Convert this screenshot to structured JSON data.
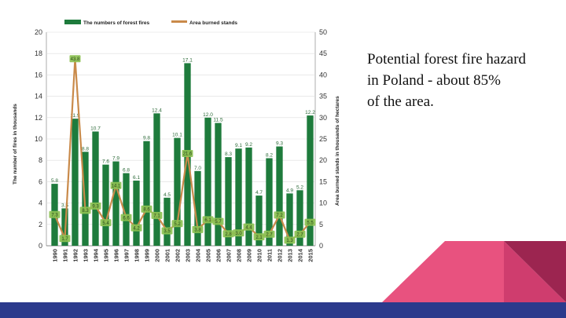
{
  "caption": {
    "lines": [
      "Potential forest fire hazard",
      "in Poland - about 85%",
      "of the area."
    ]
  },
  "colors": {
    "bar": "#1e7b3c",
    "line": "#c98a4a",
    "label_box": "#8cc152",
    "bottom_band": "#2b3a8c",
    "pink": "#e8527f",
    "magenta": "#cf3d6e",
    "maroon": "#9c2550"
  },
  "chart_data": {
    "type": "bar+line",
    "legend": [
      "The numbers of forest fires",
      "Area burned stands"
    ],
    "ylabel_left": "The number of fires in thousands",
    "ylabel_right": "Area burned stands in thousands of hectares",
    "ylim_left": [
      0,
      20
    ],
    "ylim_right": [
      0,
      50
    ],
    "yticks_left": [
      "0",
      "2",
      "4",
      "6",
      "8",
      "10",
      "12",
      "14",
      "16",
      "18",
      "20"
    ],
    "yticks_right": [
      "0",
      "5",
      "10",
      "15",
      "20",
      "25",
      "30",
      "35",
      "40",
      "45",
      "50"
    ],
    "categories": [
      "1990",
      "1991",
      "1992",
      "1993",
      "1994",
      "1995",
      "1996",
      "1997",
      "1998",
      "1999",
      "2000",
      "2001",
      "2002",
      "2003",
      "2004",
      "2005",
      "2006",
      "2007",
      "2008",
      "2009",
      "2010",
      "2011",
      "2012",
      "2013",
      "2014",
      "2015"
    ],
    "series": [
      {
        "name": "The numbers of forest fires",
        "axis": "left",
        "values": [
          5.8,
          3.5,
          11.9,
          8.8,
          10.7,
          7.6,
          7.9,
          6.8,
          6.1,
          9.8,
          12.4,
          4.5,
          10.1,
          17.1,
          7.0,
          12.0,
          11.5,
          8.3,
          9.1,
          9.2,
          4.7,
          8.2,
          9.3,
          4.9,
          5.2,
          12.2
        ],
        "labels": [
          "5.8",
          "3.5",
          "11.9",
          "8.8",
          "10.7",
          "7.6",
          "7.9",
          "6.8",
          "6.1",
          "9.8",
          "12.4",
          "4.5",
          "10.1",
          "17.1",
          "7.0",
          "12.0",
          "11.5",
          "8.3",
          "9.1",
          "9.2",
          "4.7",
          "8.2",
          "9.3",
          "4.9",
          "5.2",
          "12.2"
        ]
      },
      {
        "name": "Area burned stands",
        "axis": "right",
        "values": [
          7.3,
          1.7,
          43.8,
          8.3,
          9.3,
          5.4,
          14.1,
          6.6,
          4.2,
          8.6,
          7.1,
          3.5,
          5.2,
          21.6,
          3.8,
          6.1,
          5.7,
          2.8,
          3.0,
          4.4,
          2.1,
          2.7,
          7.2,
          1.3,
          2.7,
          5.5
        ],
        "labels": [
          "7.3",
          "1.7",
          "43.8",
          "8.3",
          "9.3",
          "5.4",
          "14.1",
          "6.6",
          "4.2",
          "8.6",
          "7.1",
          "3.5",
          "5.2",
          "21.6",
          "3.8",
          "6.1",
          "5.7",
          "2.8",
          "3.0",
          "4.4",
          "2.1",
          "2.7",
          "7.2",
          "1.3",
          "2.7",
          "5.5"
        ]
      }
    ]
  }
}
